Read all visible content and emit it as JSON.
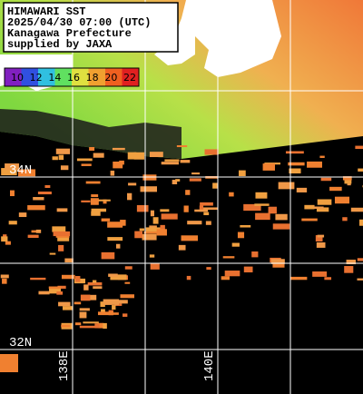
{
  "header": {
    "lines": [
      "HIMAWARI SST",
      "2025/04/30 07:00 (UTC)",
      "Kanagawa Prefecture",
      "supplied by JAXA"
    ]
  },
  "legend": {
    "ticks": [
      10,
      12,
      14,
      16,
      18,
      20,
      22
    ]
  },
  "grid": {
    "lat_labels": [
      "34N",
      "32N"
    ],
    "lon_labels": [
      "138E",
      "140E"
    ]
  }
}
